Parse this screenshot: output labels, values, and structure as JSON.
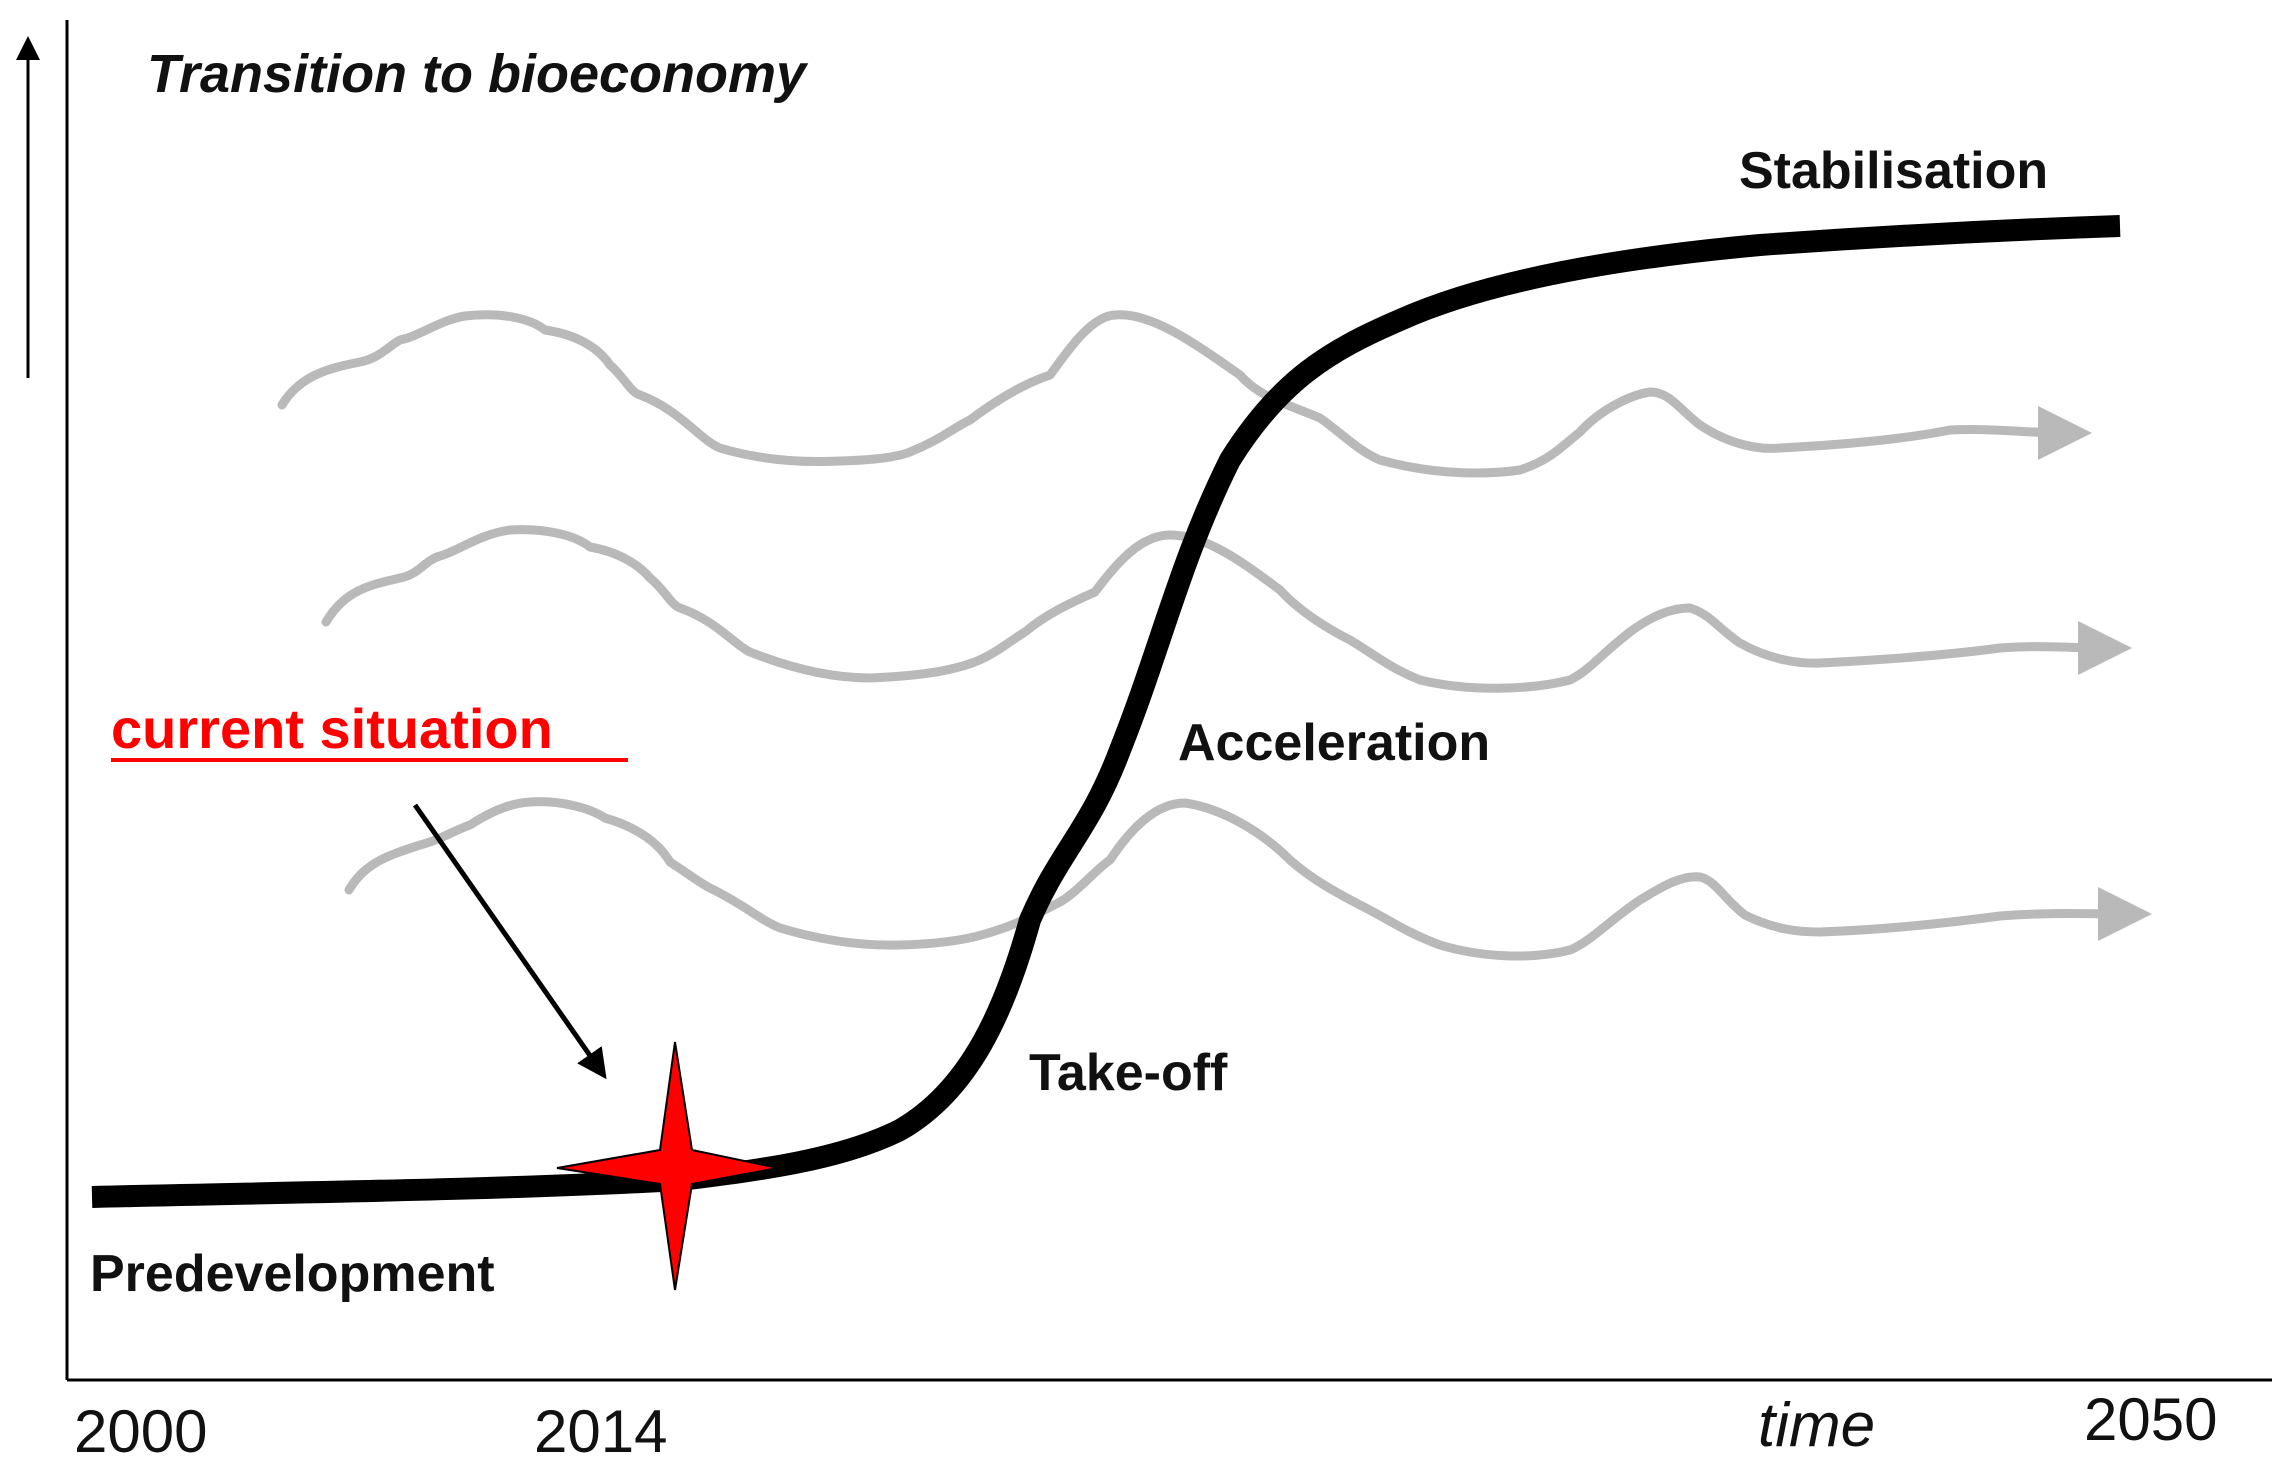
{
  "title": "Transition to bioeconomy",
  "phases": {
    "predevelopment": "Predevelopment",
    "take_off": "Take-off",
    "acceleration": "Acceleration",
    "stabilisation": "Stabilisation"
  },
  "x_axis": {
    "label": "time",
    "ticks": [
      "2000",
      "2014",
      "2050"
    ]
  },
  "callout": {
    "text": "current situation",
    "color": "#ff0000",
    "marker_year": "2014"
  },
  "colors": {
    "s_curve": "#000000",
    "waves": "#b9b9b9",
    "star": "#ff0000"
  },
  "wave_count": 3
}
